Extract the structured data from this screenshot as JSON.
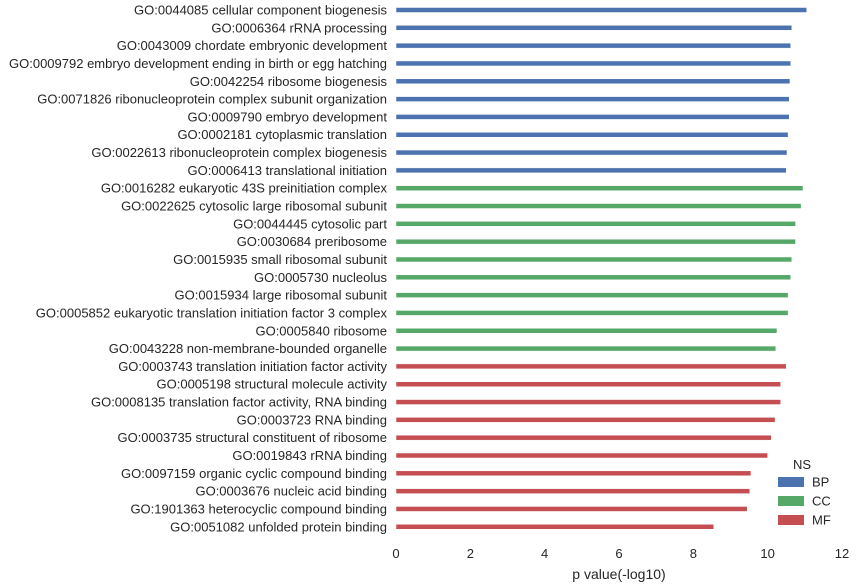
{
  "chart_data": {
    "type": "bar",
    "orientation": "horizontal",
    "xlabel": "p value(-log10)",
    "ylabel": "",
    "xlim": [
      0,
      12
    ],
    "xticks": [
      "0",
      "2",
      "4",
      "6",
      "8",
      "10",
      "12"
    ],
    "grid": false,
    "legend": {
      "title": "NS",
      "placement": "lower-right",
      "entries": [
        {
          "name": "BP",
          "color": "#4c72b0"
        },
        {
          "name": "CC",
          "color": "#55a868"
        },
        {
          "name": "MF",
          "color": "#c44e52"
        }
      ]
    },
    "bars": [
      {
        "label": "GO:0044085 cellular component biogenesis",
        "value": 11.05,
        "ns": "BP"
      },
      {
        "label": "GO:0006364 rRNA processing",
        "value": 10.65,
        "ns": "BP"
      },
      {
        "label": "GO:0043009 chordate embryonic development",
        "value": 10.62,
        "ns": "BP"
      },
      {
        "label": "GO:0009792 embryo development ending in birth or egg hatching",
        "value": 10.62,
        "ns": "BP"
      },
      {
        "label": "GO:0042254 ribosome biogenesis",
        "value": 10.6,
        "ns": "BP"
      },
      {
        "label": "GO:0071826 ribonucleoprotein complex subunit organization",
        "value": 10.58,
        "ns": "BP"
      },
      {
        "label": "GO:0009790 embryo development",
        "value": 10.58,
        "ns": "BP"
      },
      {
        "label": "GO:0002181 cytoplasmic translation",
        "value": 10.55,
        "ns": "BP"
      },
      {
        "label": "GO:0022613 ribonucleoprotein complex biogenesis",
        "value": 10.52,
        "ns": "BP"
      },
      {
        "label": "GO:0006413 translational initiation",
        "value": 10.5,
        "ns": "BP"
      },
      {
        "label": "GO:0016282 eukaryotic 43S preinitiation complex",
        "value": 10.95,
        "ns": "CC"
      },
      {
        "label": "GO:0022625 cytosolic large ribosomal subunit",
        "value": 10.9,
        "ns": "CC"
      },
      {
        "label": "GO:0044445 cytosolic part",
        "value": 10.75,
        "ns": "CC"
      },
      {
        "label": "GO:0030684 preribosome",
        "value": 10.75,
        "ns": "CC"
      },
      {
        "label": "GO:0015935 small ribosomal subunit",
        "value": 10.65,
        "ns": "CC"
      },
      {
        "label": "GO:0005730 nucleolus",
        "value": 10.62,
        "ns": "CC"
      },
      {
        "label": "GO:0015934 large ribosomal subunit",
        "value": 10.55,
        "ns": "CC"
      },
      {
        "label": "GO:0005852 eukaryotic translation initiation factor 3 complex",
        "value": 10.55,
        "ns": "CC"
      },
      {
        "label": "GO:0005840 ribosome",
        "value": 10.25,
        "ns": "CC"
      },
      {
        "label": "GO:0043228 non-membrane-bounded organelle",
        "value": 10.22,
        "ns": "CC"
      },
      {
        "label": "GO:0003743 translation initiation factor activity",
        "value": 10.5,
        "ns": "MF"
      },
      {
        "label": "GO:0005198 structural molecule activity",
        "value": 10.35,
        "ns": "MF"
      },
      {
        "label": "GO:0008135 translation factor activity, RNA binding",
        "value": 10.35,
        "ns": "MF"
      },
      {
        "label": "GO:0003723 RNA binding",
        "value": 10.2,
        "ns": "MF"
      },
      {
        "label": "GO:0003735 structural constituent of ribosome",
        "value": 10.1,
        "ns": "MF"
      },
      {
        "label": "GO:0019843 rRNA binding",
        "value": 10.0,
        "ns": "MF"
      },
      {
        "label": "GO:0097159 organic cyclic compound binding",
        "value": 9.55,
        "ns": "MF"
      },
      {
        "label": "GO:0003676 nucleic acid binding",
        "value": 9.52,
        "ns": "MF"
      },
      {
        "label": "GO:1901363 heterocyclic compound binding",
        "value": 9.45,
        "ns": "MF"
      },
      {
        "label": "GO:0051082 unfolded protein binding",
        "value": 8.55,
        "ns": "MF"
      }
    ]
  }
}
